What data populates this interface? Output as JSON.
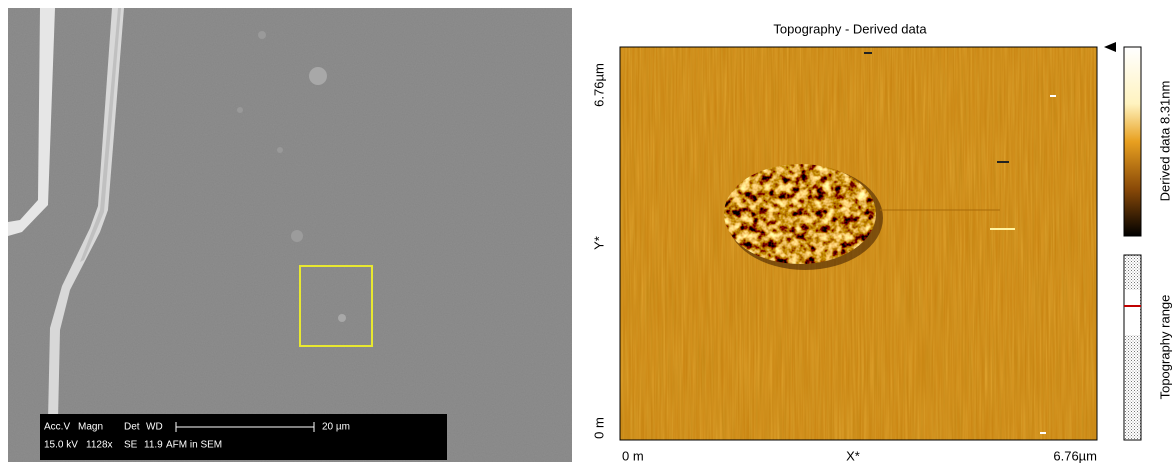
{
  "sem": {
    "info": {
      "labels": [
        "Acc.V",
        "Magn",
        "Det",
        "WD"
      ],
      "values": [
        "15.0 kV",
        "1128x",
        "SE",
        "11.9"
      ],
      "scale": "20 µm",
      "note": "AFM in SEM"
    }
  },
  "afm": {
    "title": "Topography - Derived data",
    "y_axis": {
      "max": "6.76µm",
      "label": "Y*",
      "min": "0 m"
    },
    "x_axis": {
      "min": "0 m",
      "label": "X*",
      "max": "6.76µm"
    },
    "colorbar": {
      "label": "Derived data 8.31nm"
    },
    "range_bar": {
      "label": "Topography range"
    }
  }
}
